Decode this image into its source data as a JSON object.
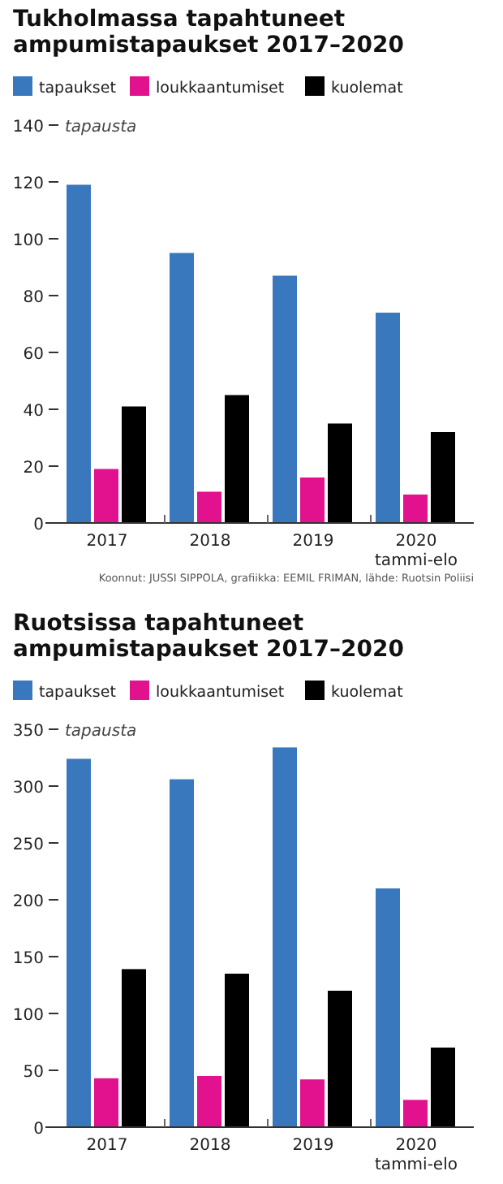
{
  "chart_data": [
    {
      "type": "bar",
      "title": "Tukholmassa tapahtuneet ampumistapaukset 2017–2020",
      "ylabel": "tapausta",
      "categories": [
        "2017",
        "2018",
        "2019",
        "2020\ntammi-elo"
      ],
      "series": [
        {
          "name": "tapaukset",
          "color": "#3a78bd",
          "values": [
            119,
            95,
            87,
            74
          ]
        },
        {
          "name": "loukkaantumiset",
          "color": "#e2128e",
          "values": [
            19,
            11,
            16,
            10
          ]
        },
        {
          "name": "kuolemat",
          "color": "#000000",
          "values": [
            41,
            45,
            35,
            32
          ]
        }
      ],
      "ylim": [
        0,
        140
      ],
      "yticks": [
        0,
        20,
        40,
        60,
        80,
        100,
        120,
        140
      ],
      "legend": "top",
      "grid": false,
      "annotations": [
        "Koonnut: JUSSI SIPPOLA, grafiikka: EEMIL FRIMAN, lähde: Ruotsin Poliisi"
      ]
    },
    {
      "type": "bar",
      "title": "Ruotsissa tapahtuneet ampumistapaukset 2017–2020",
      "ylabel": "tapausta",
      "categories": [
        "2017",
        "2018",
        "2019",
        "2020\ntammi-elo"
      ],
      "series": [
        {
          "name": "tapaukset",
          "color": "#3a78bd",
          "values": [
            324,
            306,
            334,
            210
          ]
        },
        {
          "name": "loukkaantumiset",
          "color": "#e2128e",
          "values": [
            43,
            45,
            42,
            24
          ]
        },
        {
          "name": "kuolemat",
          "color": "#000000",
          "values": [
            139,
            135,
            120,
            70
          ]
        }
      ],
      "ylim": [
        0,
        350
      ],
      "yticks": [
        0,
        50,
        100,
        150,
        200,
        250,
        300,
        350
      ],
      "legend": "top",
      "grid": false
    }
  ]
}
